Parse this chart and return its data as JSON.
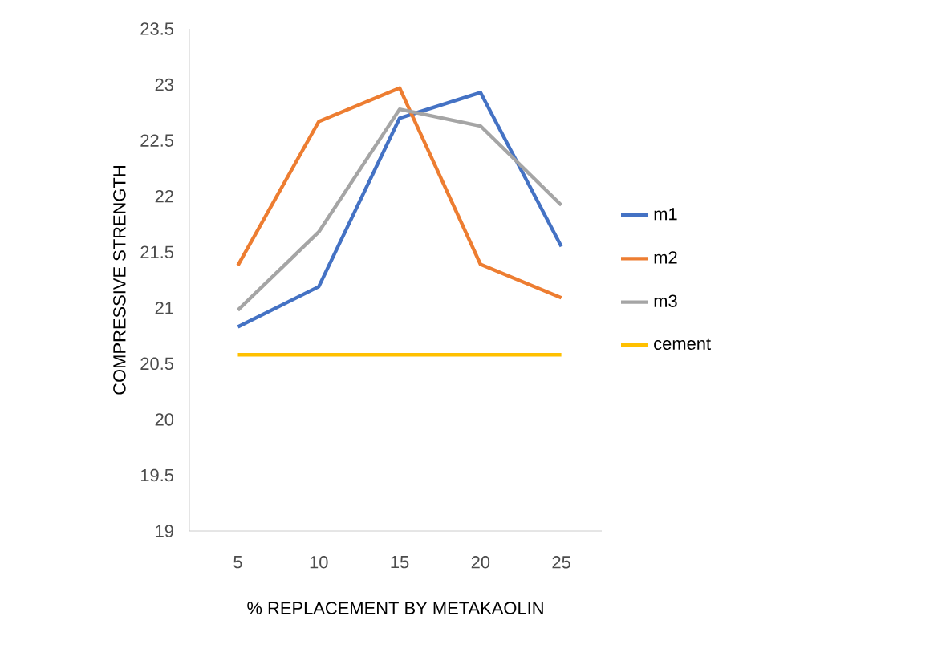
{
  "chart_data": {
    "type": "line",
    "xlabel": "% REPLACEMENT BY METAKAOLIN",
    "ylabel": "COMPRESSIVE STRENGTH",
    "categories": [
      "5",
      "10",
      "15",
      "20",
      "25"
    ],
    "series": [
      {
        "name": "m1",
        "color": "#4472c4",
        "values": [
          20.83,
          21.19,
          22.7,
          22.93,
          21.55
        ]
      },
      {
        "name": "m2",
        "color": "#ed7d31",
        "values": [
          21.38,
          22.67,
          22.97,
          21.39,
          21.09
        ]
      },
      {
        "name": "m3",
        "color": "#a5a5a5",
        "values": [
          20.98,
          21.68,
          22.78,
          22.63,
          21.92
        ]
      },
      {
        "name": "cement",
        "color": "#ffc000",
        "values": [
          20.58,
          20.58,
          20.58,
          20.58,
          20.58
        ]
      }
    ],
    "ylim": [
      19,
      23.5
    ],
    "yticks": [
      19,
      19.5,
      20,
      20.5,
      21,
      21.5,
      22,
      22.5,
      23,
      23.5
    ],
    "grid": false,
    "legend": "right",
    "marker": "none",
    "line_style": "solid"
  }
}
